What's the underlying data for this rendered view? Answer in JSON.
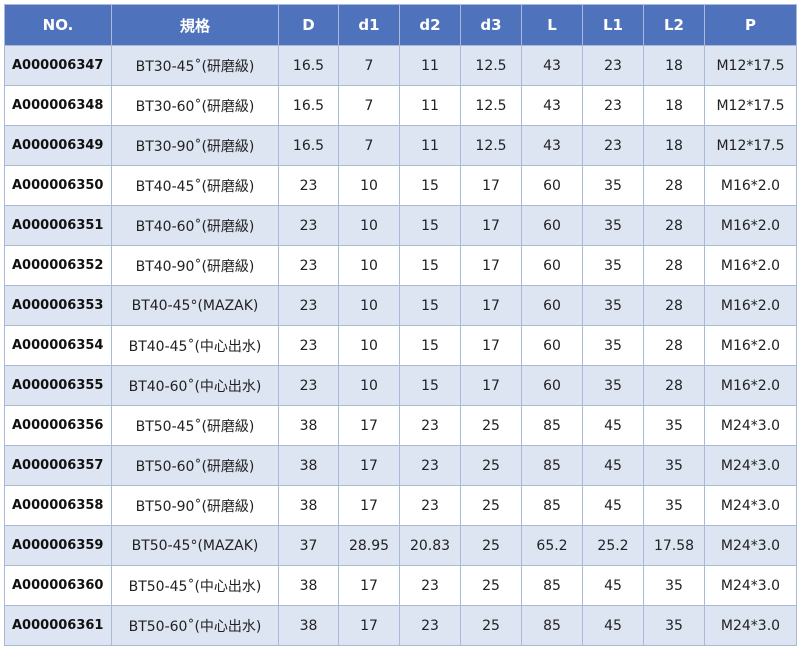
{
  "headers": [
    "NO.",
    "規格",
    "D",
    "d1",
    "d2",
    "d3",
    "L",
    "L1",
    "L2",
    "P"
  ],
  "rows": [
    [
      "A000006347",
      "BT30-45˚(研磨級)",
      "16.5",
      "7",
      "11",
      "12.5",
      "43",
      "23",
      "18",
      "M12*17.5"
    ],
    [
      "A000006348",
      "BT30-60˚(研磨級)",
      "16.5",
      "7",
      "11",
      "12.5",
      "43",
      "23",
      "18",
      "M12*17.5"
    ],
    [
      "A000006349",
      "BT30-90˚(研磨級)",
      "16.5",
      "7",
      "11",
      "12.5",
      "43",
      "23",
      "18",
      "M12*17.5"
    ],
    [
      "A000006350",
      "BT40-45˚(研磨級)",
      "23",
      "10",
      "15",
      "17",
      "60",
      "35",
      "28",
      "M16*2.0"
    ],
    [
      "A000006351",
      "BT40-60˚(研磨級)",
      "23",
      "10",
      "15",
      "17",
      "60",
      "35",
      "28",
      "M16*2.0"
    ],
    [
      "A000006352",
      "BT40-90˚(研磨級)",
      "23",
      "10",
      "15",
      "17",
      "60",
      "35",
      "28",
      "M16*2.0"
    ],
    [
      "A000006353",
      "BT40-45°(MAZAK)",
      "23",
      "10",
      "15",
      "17",
      "60",
      "35",
      "28",
      "M16*2.0"
    ],
    [
      "A000006354",
      "BT40-45˚(中心出水)",
      "23",
      "10",
      "15",
      "17",
      "60",
      "35",
      "28",
      "M16*2.0"
    ],
    [
      "A000006355",
      "BT40-60˚(中心出水)",
      "23",
      "10",
      "15",
      "17",
      "60",
      "35",
      "28",
      "M16*2.0"
    ],
    [
      "A000006356",
      "BT50-45˚(研磨級)",
      "38",
      "17",
      "23",
      "25",
      "85",
      "45",
      "35",
      "M24*3.0"
    ],
    [
      "A000006357",
      "BT50-60˚(研磨級)",
      "38",
      "17",
      "23",
      "25",
      "85",
      "45",
      "35",
      "M24*3.0"
    ],
    [
      "A000006358",
      "BT50-90˚(研磨級)",
      "38",
      "17",
      "23",
      "25",
      "85",
      "45",
      "35",
      "M24*3.0"
    ],
    [
      "A000006359",
      "BT50-45°(MAZAK)",
      "37",
      "28.95",
      "20.83",
      "25",
      "65.2",
      "25.2",
      "17.58",
      "M24*3.0"
    ],
    [
      "A000006360",
      "BT50-45˚(中心出水)",
      "38",
      "17",
      "23",
      "25",
      "85",
      "45",
      "35",
      "M24*3.0"
    ],
    [
      "A000006361",
      "BT50-60˚(中心出水)",
      "38",
      "17",
      "23",
      "25",
      "85",
      "45",
      "35",
      "M24*3.0"
    ]
  ],
  "colors": {
    "header_bg": "#4f72bd",
    "stripe_bg": "#dde4f2",
    "border": "#a9b9d6"
  }
}
